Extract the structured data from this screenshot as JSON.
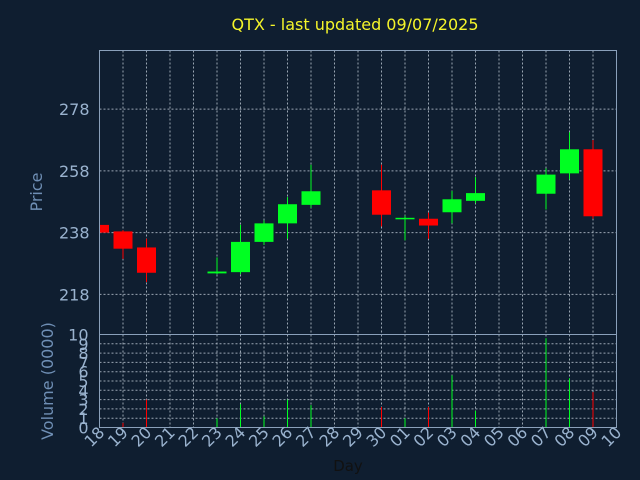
{
  "colors": {
    "up": "#00ff22",
    "down": "#ff0000",
    "background": "#0f1e30",
    "title": "#f5f52a",
    "tick": "#9ab3cf"
  },
  "chart_data": {
    "type": "candlestick",
    "title": "QTX - last updated 09/07/2025",
    "xlabel": "Day",
    "price_panel": {
      "ylabel": "Price",
      "yticks": [
        218,
        238,
        258,
        278
      ],
      "ylim": [
        205,
        297
      ]
    },
    "volume_panel": {
      "ylabel": "Volume (0000)",
      "yticks": [
        0,
        1,
        2,
        3,
        4,
        5,
        6,
        7,
        8,
        9,
        10
      ],
      "ylim": [
        0,
        10
      ]
    },
    "x_tick_labels": [
      "18",
      "19",
      "20",
      "21",
      "22",
      "23",
      "24",
      "25",
      "26",
      "27",
      "28",
      "29",
      "30",
      "01",
      "02",
      "03",
      "04",
      "05",
      "06",
      "07",
      "08",
      "09",
      "10"
    ],
    "grid": true,
    "candles": [
      {
        "day": "18",
        "open": 240.5,
        "high": 241.5,
        "low": 238,
        "close": 238.0,
        "volume": 0
      },
      {
        "day": "19",
        "open": 238.4,
        "high": 238.8,
        "low": 229.5,
        "close": 232.8,
        "volume": 0.5
      },
      {
        "day": "20",
        "open": 233.2,
        "high": 236,
        "low": 222,
        "close": 225.0,
        "volume": 3
      },
      {
        "day": "23",
        "open": 224.8,
        "high": 230,
        "low": 224.5,
        "close": 225.4,
        "volume": 1
      },
      {
        "day": "24",
        "open": 225.2,
        "high": 240.5,
        "low": 224.5,
        "close": 235.0,
        "volume": 2.5
      },
      {
        "day": "25",
        "open": 235.0,
        "high": 242,
        "low": 234,
        "close": 241.0,
        "volume": 1.2
      },
      {
        "day": "26",
        "open": 241.0,
        "high": 249.5,
        "low": 236,
        "close": 247.2,
        "volume": 3
      },
      {
        "day": "27",
        "open": 247.0,
        "high": 260,
        "low": 246,
        "close": 251.4,
        "volume": 2.4
      },
      {
        "day": "30",
        "open": 251.7,
        "high": 260,
        "low": 240,
        "close": 243.8,
        "volume": 2.2
      },
      {
        "day": "01",
        "open": 242.4,
        "high": 243.5,
        "low": 235.5,
        "close": 242.8,
        "volume": 1
      },
      {
        "day": "02",
        "open": 242.5,
        "high": 244.5,
        "low": 236,
        "close": 240.3,
        "volume": 2.2
      },
      {
        "day": "03",
        "open": 244.6,
        "high": 251.5,
        "low": 241,
        "close": 248.8,
        "volume": 5.6
      },
      {
        "day": "04",
        "open": 248.3,
        "high": 256,
        "low": 247.5,
        "close": 250.8,
        "volume": 1.8
      },
      {
        "day": "07",
        "open": 250.6,
        "high": 258.8,
        "low": 245.5,
        "close": 256.8,
        "volume": 9.6
      },
      {
        "day": "08",
        "open": 257.2,
        "high": 270.5,
        "low": 255.2,
        "close": 265.0,
        "volume": 5.3
      },
      {
        "day": "09",
        "open": 265.0,
        "high": 268,
        "low": 242.5,
        "close": 243.3,
        "volume": 3.8
      }
    ]
  }
}
